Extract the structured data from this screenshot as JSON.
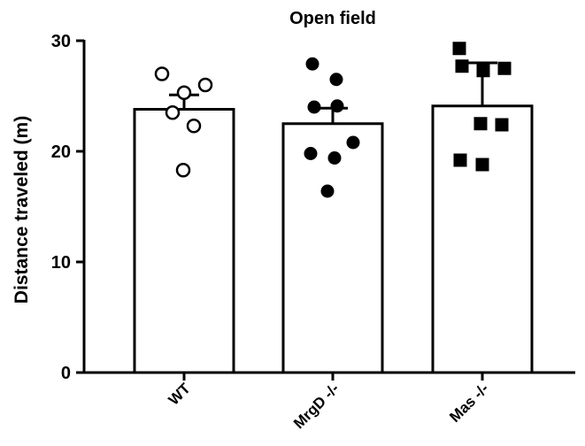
{
  "chart_data": {
    "type": "bar",
    "title": "Open field",
    "xlabel": "",
    "ylabel": "Distance traveled (m)",
    "ylim": [
      0,
      30
    ],
    "yticks": [
      0,
      10,
      20,
      30
    ],
    "grid": false,
    "categories": [
      "WT",
      "MrgD -/-",
      "Mas -/-"
    ],
    "values": [
      23.8,
      22.5,
      24.1
    ],
    "error": [
      1.3,
      1.4,
      3.9
    ],
    "points": [
      {
        "group": "WT",
        "marker": "open-circle",
        "values": [
          27.0,
          26.0,
          25.3,
          23.5,
          22.3,
          18.3
        ]
      },
      {
        "group": "MrgD -/-",
        "marker": "filled-circle",
        "values": [
          27.9,
          26.5,
          24.1,
          24.0,
          20.8,
          19.8,
          19.4,
          16.4
        ]
      },
      {
        "group": "Mas -/-",
        "marker": "filled-square",
        "values": [
          29.3,
          27.7,
          27.5,
          27.3,
          22.5,
          22.4,
          19.2,
          18.8
        ]
      }
    ],
    "bar_fill": "#ffffff",
    "stroke_color": "#000000"
  }
}
